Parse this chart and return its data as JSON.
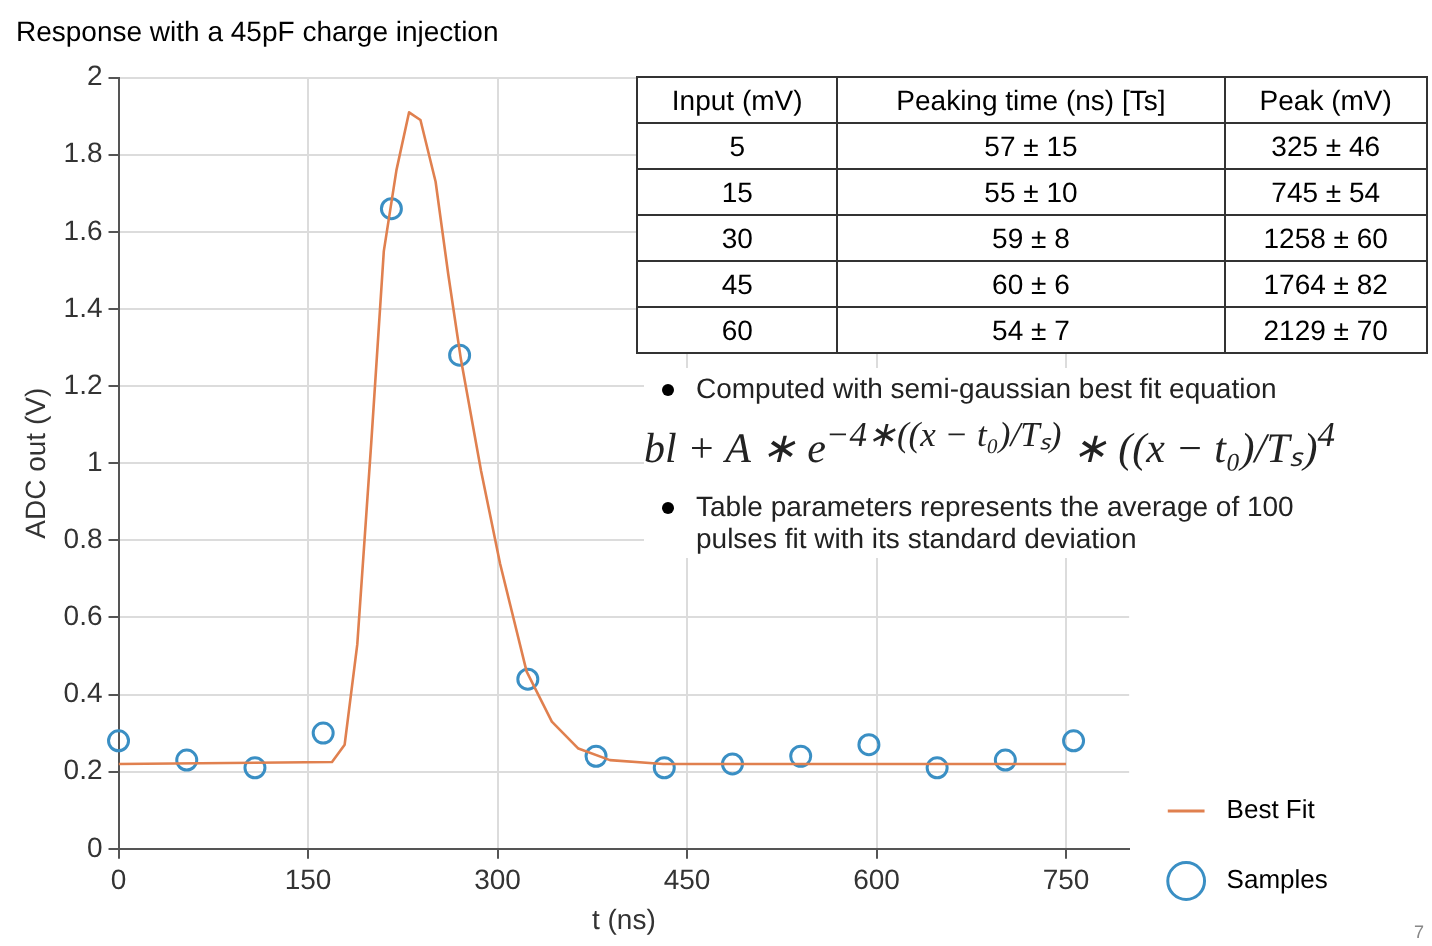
{
  "chart_data": {
    "type": "scatter",
    "title": "Response with a 45pF charge injection",
    "xlabel": "t (ns)",
    "ylabel": "ADC out (V)",
    "xlim": [
      0,
      800
    ],
    "xticks": [
      0,
      150,
      300,
      450,
      600,
      750
    ],
    "ylim": [
      0,
      2
    ],
    "yticks": [
      0,
      0.2,
      0.4,
      0.6,
      0.8,
      1,
      1.2,
      1.4,
      1.6,
      1.8,
      2
    ],
    "grid": true,
    "legend": "bottom right",
    "series": [
      {
        "name": "Best Fit",
        "type": "line",
        "color": "#e0804f",
        "marker": "none",
        "x": [
          0,
          169,
          179,
          189,
          200,
          210,
          220,
          230,
          239,
          251,
          261,
          271,
          287,
          302,
          323,
          343,
          364,
          389,
          431,
          750
        ],
        "values": [
          0.22,
          0.225,
          0.27,
          0.53,
          1.05,
          1.55,
          1.76,
          1.91,
          1.89,
          1.73,
          1.49,
          1.27,
          0.98,
          0.74,
          0.46,
          0.33,
          0.26,
          0.23,
          0.22,
          0.22
        ]
      },
      {
        "name": "Samples",
        "type": "scatter",
        "color": "#3a8fc4",
        "marker": "circle",
        "x": [
          0,
          54,
          108,
          162,
          216,
          270,
          324,
          378,
          432,
          486,
          540,
          594,
          648,
          702,
          756
        ],
        "values": [
          0.28,
          0.23,
          0.21,
          0.3,
          1.66,
          1.28,
          0.44,
          0.24,
          0.21,
          0.22,
          0.24,
          0.27,
          0.21,
          0.23,
          0.28
        ]
      }
    ],
    "annotations": [
      "Input (mV)",
      "Peaking time (ns) [Ts]",
      "Peak (mV)",
      "5",
      "57 ± 15",
      "325 ± 46",
      "15",
      "55 ± 10",
      "745 ± 54",
      "30",
      "59 ± 8",
      "1258 ± 60",
      "45",
      "60 ± 6",
      "1764 ± 82",
      "60",
      "54 ± 7",
      "2129 ± 70",
      "Computed with semi-gaussian best fit equation",
      "bl + A ∗ e$^{−4∗((x − t₀)/Tₛ)}$ ∗ ((x − t₀)/Tₛ)$^{4}$",
      "Table parameters represents the average of 100 pulses fit with its standard deviation",
      "7"
    ]
  }
}
